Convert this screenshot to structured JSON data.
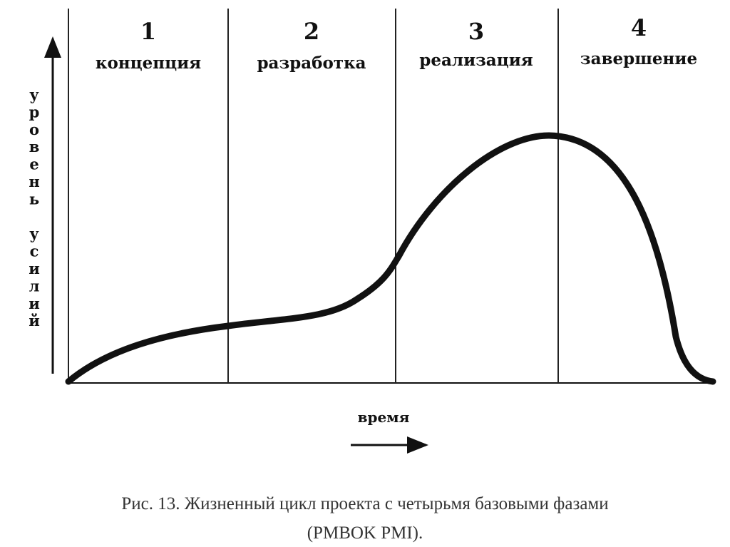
{
  "phases": [
    {
      "number": "1",
      "name": "концепция"
    },
    {
      "number": "2",
      "name": "разработка"
    },
    {
      "number": "3",
      "name": "реализация"
    },
    {
      "number": "4",
      "name": "завершение"
    }
  ],
  "y_axis_label": "уровень усилий",
  "x_axis_label": "время",
  "caption": {
    "line1": "Рис. 13.  Жизненный цикл проекта с четырьмя базовыми фазами",
    "line2": "(PMBOK PMI)."
  },
  "colors": {
    "ink": "#111111",
    "caption": "#333333",
    "background": "#ffffff"
  }
}
